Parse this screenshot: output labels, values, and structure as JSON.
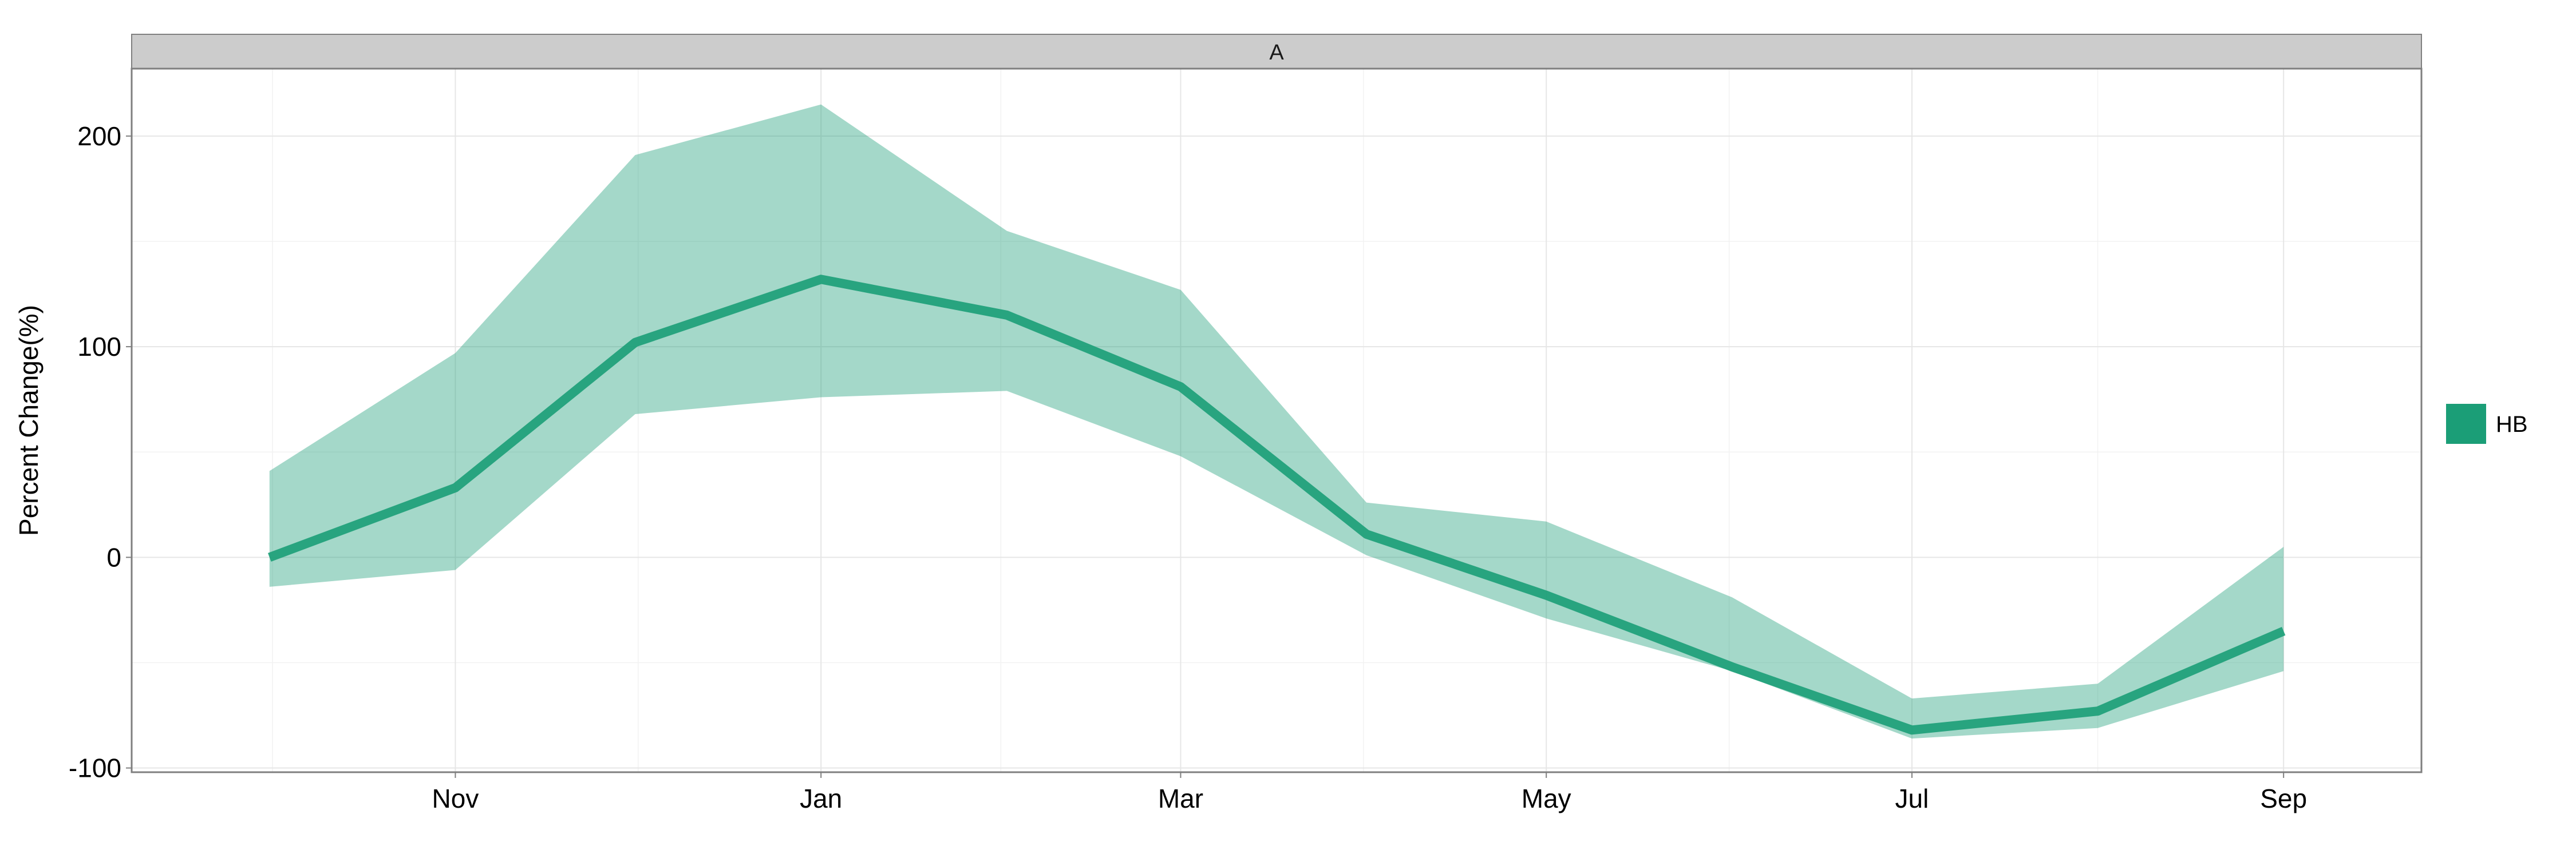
{
  "chart_data": {
    "type": "area",
    "panel_label": "A",
    "title": "",
    "xlabel": "",
    "ylabel": "Percent Change(%)",
    "x": [
      "2011-10-01",
      "2011-11-01",
      "2011-12-01",
      "2012-01-01",
      "2012-02-01",
      "2012-03-01",
      "2012-04-01",
      "2012-05-01",
      "2012-06-01",
      "2012-07-01",
      "2012-08-01",
      "2012-09-01"
    ],
    "x_tick_labels": [
      "Nov",
      "Jan",
      "Mar",
      "May",
      "Jul",
      "Sep"
    ],
    "x_tick_dates": [
      "2011-11-01",
      "2012-01-01",
      "2012-03-01",
      "2012-05-01",
      "2012-07-01",
      "2012-09-01"
    ],
    "xlim": [
      "2011-09-08",
      "2012-09-24"
    ],
    "y_ticks": [
      -100,
      0,
      100,
      200
    ],
    "y_tick_labels": [
      "-100",
      "0",
      "100",
      "200"
    ],
    "ylim": [
      -102,
      232
    ],
    "grid": true,
    "legend_position": "right",
    "series": [
      {
        "name": "HB",
        "color": "#1b9e77",
        "mean": [
          0,
          33,
          102,
          132,
          115,
          81,
          11,
          -18,
          -52,
          -82,
          -73,
          -35
        ],
        "lower": [
          -14,
          -6,
          68,
          76,
          79,
          48,
          1,
          -29,
          -54,
          -86,
          -81,
          -54
        ],
        "upper": [
          41,
          97,
          191,
          215,
          155,
          127,
          26,
          17,
          -19,
          -67,
          -60,
          5
        ]
      }
    ]
  }
}
